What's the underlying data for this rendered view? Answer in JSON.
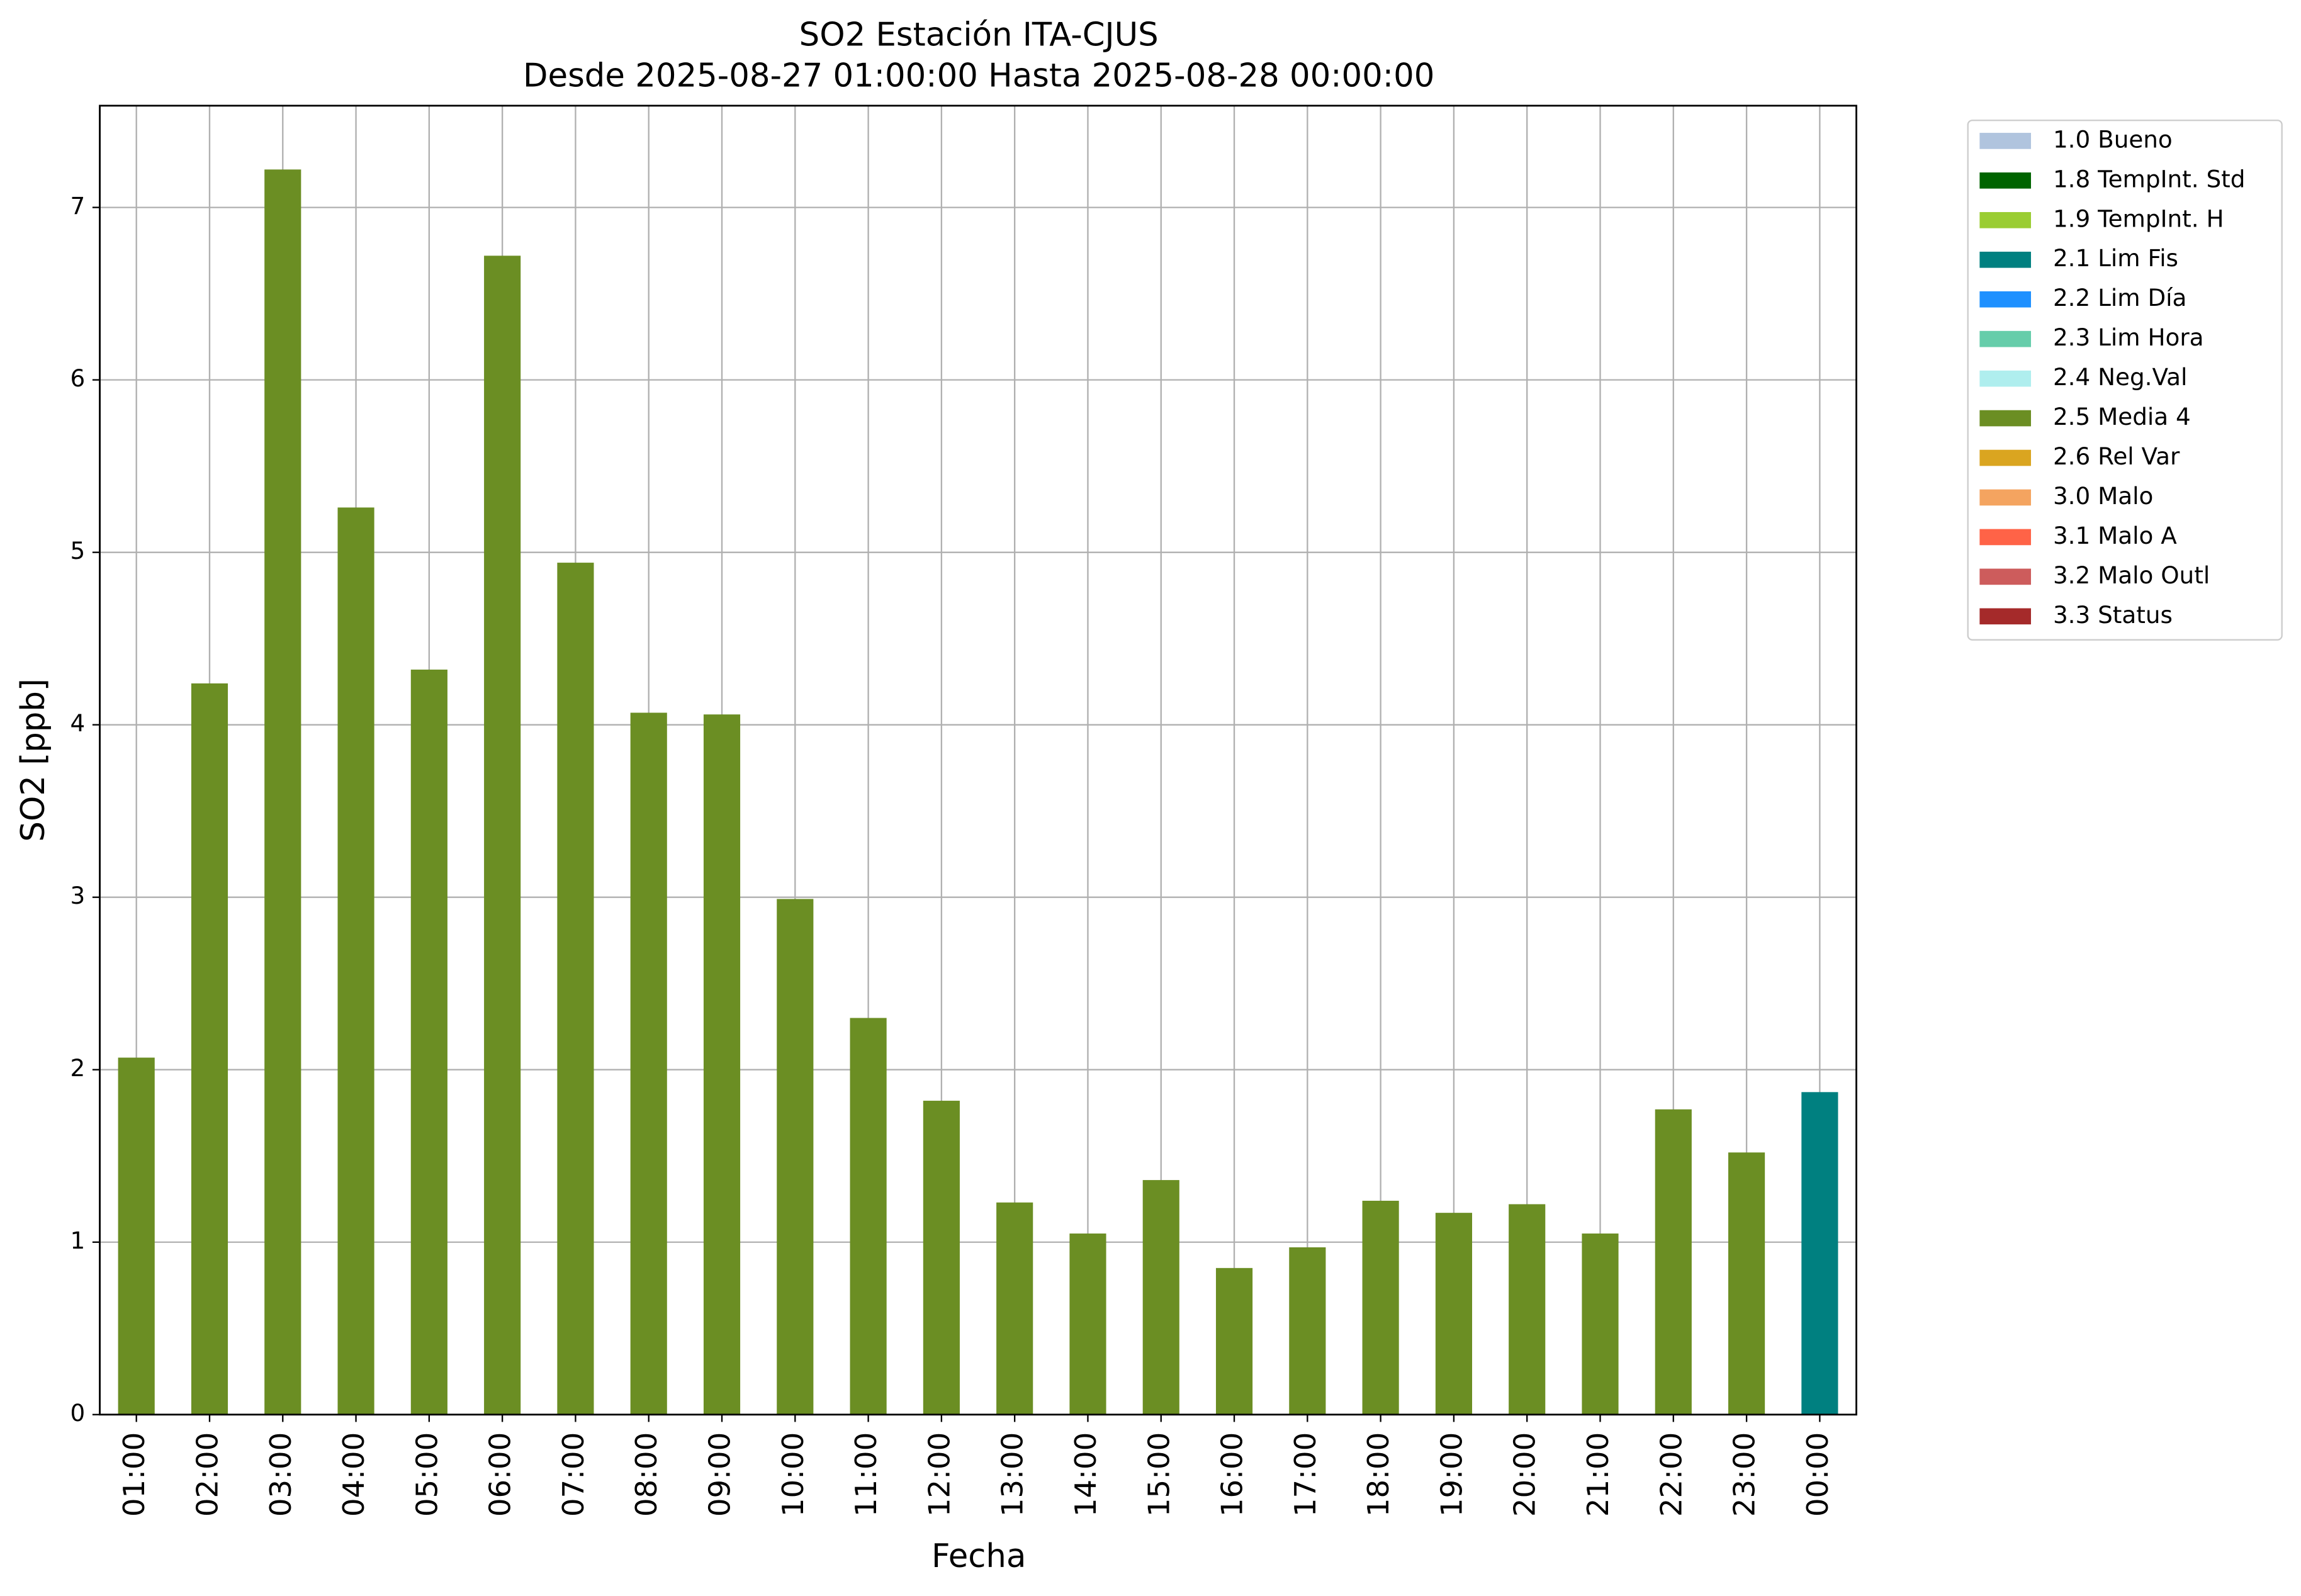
{
  "chart_data": {
    "type": "bar",
    "title": "SO2 Estación ITA-CJUS",
    "subtitle": "Desde 2025-08-27 01:00:00 Hasta 2025-08-28 00:00:00",
    "x_label": "Fecha",
    "y_label": "SO2 [ppb]",
    "categories": [
      "01:00",
      "02:00",
      "03:00",
      "04:00",
      "05:00",
      "06:00",
      "07:00",
      "08:00",
      "09:00",
      "10:00",
      "11:00",
      "12:00",
      "13:00",
      "14:00",
      "15:00",
      "16:00",
      "17:00",
      "18:00",
      "19:00",
      "20:00",
      "21:00",
      "22:00",
      "23:00",
      "00:00"
    ],
    "stacked": true,
    "grid": true,
    "legend_position": "outside-right-top",
    "ylim": [
      0,
      7.59
    ],
    "yticks": [
      0,
      1,
      2,
      3,
      4,
      5,
      6,
      7
    ],
    "series": [
      {
        "name": "1.0 Bueno",
        "color": "#b0c4de",
        "values": [
          null,
          null,
          null,
          null,
          null,
          null,
          null,
          null,
          null,
          null,
          null,
          null,
          null,
          null,
          null,
          null,
          null,
          null,
          null,
          null,
          null,
          null,
          null,
          null
        ]
      },
      {
        "name": "1.8 TempInt. Std",
        "color": "#006400",
        "values": [
          null,
          null,
          null,
          null,
          null,
          null,
          null,
          null,
          null,
          null,
          null,
          null,
          null,
          null,
          null,
          null,
          null,
          null,
          null,
          null,
          null,
          null,
          null,
          null
        ]
      },
      {
        "name": "1.9 TempInt. H",
        "color": "#9acd32",
        "values": [
          null,
          null,
          null,
          null,
          null,
          null,
          null,
          null,
          null,
          null,
          null,
          null,
          null,
          null,
          null,
          null,
          null,
          null,
          null,
          null,
          null,
          null,
          null,
          null
        ]
      },
      {
        "name": "2.1 Lim Fis",
        "color": "#008080",
        "values": [
          null,
          null,
          null,
          null,
          null,
          null,
          null,
          null,
          null,
          null,
          null,
          null,
          null,
          null,
          null,
          null,
          null,
          null,
          null,
          null,
          null,
          null,
          null,
          1.87
        ]
      },
      {
        "name": "2.2 Lim Día",
        "color": "#1e90ff",
        "values": [
          null,
          null,
          null,
          null,
          null,
          null,
          null,
          null,
          null,
          null,
          null,
          null,
          null,
          null,
          null,
          null,
          null,
          null,
          null,
          null,
          null,
          null,
          null,
          null
        ]
      },
      {
        "name": "2.3 Lim Hora",
        "color": "#66cdaa",
        "values": [
          null,
          null,
          null,
          null,
          null,
          null,
          null,
          null,
          null,
          null,
          null,
          null,
          null,
          null,
          null,
          null,
          null,
          null,
          null,
          null,
          null,
          null,
          null,
          null
        ]
      },
      {
        "name": "2.4 Neg.Val",
        "color": "#afeeee",
        "values": [
          null,
          null,
          null,
          null,
          null,
          null,
          null,
          null,
          null,
          null,
          null,
          null,
          null,
          null,
          null,
          null,
          null,
          null,
          null,
          null,
          null,
          null,
          null,
          null
        ]
      },
      {
        "name": "2.5 Media 4",
        "color": "#6b8e23",
        "values": [
          2.07,
          4.24,
          7.22,
          5.26,
          4.32,
          6.72,
          4.94,
          4.07,
          4.06,
          2.99,
          2.3,
          1.82,
          1.23,
          1.05,
          1.36,
          0.85,
          0.97,
          1.24,
          1.17,
          1.22,
          1.05,
          1.77,
          1.52,
          null
        ]
      },
      {
        "name": "2.6 Rel Var",
        "color": "#daa520",
        "values": [
          null,
          null,
          null,
          null,
          null,
          null,
          null,
          null,
          null,
          null,
          null,
          null,
          null,
          null,
          null,
          null,
          null,
          null,
          null,
          null,
          null,
          null,
          null,
          null
        ]
      },
      {
        "name": "3.0 Malo",
        "color": "#f4a460",
        "values": [
          null,
          null,
          null,
          null,
          null,
          null,
          null,
          null,
          null,
          null,
          null,
          null,
          null,
          null,
          null,
          null,
          null,
          null,
          null,
          null,
          null,
          null,
          null,
          null
        ]
      },
      {
        "name": "3.1 Malo A",
        "color": "#ff6347",
        "values": [
          null,
          null,
          null,
          null,
          null,
          null,
          null,
          null,
          null,
          null,
          null,
          null,
          null,
          null,
          null,
          null,
          null,
          null,
          null,
          null,
          null,
          null,
          null,
          null
        ]
      },
      {
        "name": "3.2 Malo Outl",
        "color": "#cd5c5c",
        "values": [
          null,
          null,
          null,
          null,
          null,
          null,
          null,
          null,
          null,
          null,
          null,
          null,
          null,
          null,
          null,
          null,
          null,
          null,
          null,
          null,
          null,
          null,
          null,
          null
        ]
      },
      {
        "name": "3.3 Status",
        "color": "#a52a2a",
        "values": [
          null,
          null,
          null,
          null,
          null,
          null,
          null,
          null,
          null,
          null,
          null,
          null,
          null,
          null,
          null,
          null,
          null,
          null,
          null,
          null,
          null,
          null,
          null,
          null
        ]
      }
    ]
  }
}
